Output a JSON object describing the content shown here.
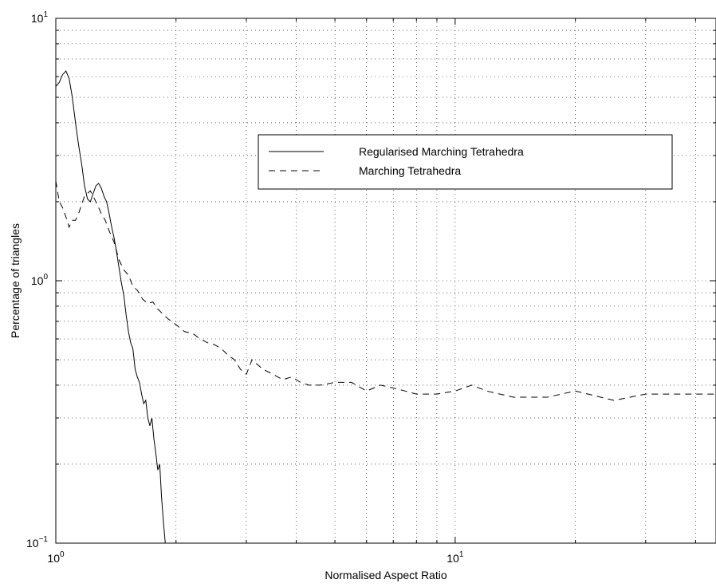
{
  "chart_data": {
    "type": "line",
    "title": "",
    "xlabel": "Normalised Aspect Ratio",
    "ylabel": "Percentage of triangles",
    "xscale": "log",
    "yscale": "log",
    "xlim": [
      1,
      45
    ],
    "ylim": [
      0.1,
      10
    ],
    "grid": true,
    "legend_position": "upper-right",
    "x_ticks": [
      {
        "value": 1,
        "base": "10",
        "exp": "0"
      },
      {
        "value": 10,
        "base": "10",
        "exp": "1"
      }
    ],
    "y_ticks": [
      {
        "value": 0.1,
        "base": "10",
        "exp": "−1"
      },
      {
        "value": 1,
        "base": "10",
        "exp": "0"
      },
      {
        "value": 10,
        "base": "10",
        "exp": "1"
      }
    ],
    "series": [
      {
        "name": "Regularised Marching Tetrahedra",
        "style": "solid",
        "color": "#000000",
        "points": [
          [
            1.0,
            5.5
          ],
          [
            1.02,
            5.7
          ],
          [
            1.04,
            6.1
          ],
          [
            1.06,
            6.3
          ],
          [
            1.08,
            5.9
          ],
          [
            1.1,
            5.0
          ],
          [
            1.12,
            4.0
          ],
          [
            1.14,
            3.3
          ],
          [
            1.16,
            2.8
          ],
          [
            1.18,
            2.3
          ],
          [
            1.2,
            2.05
          ],
          [
            1.22,
            2.0
          ],
          [
            1.24,
            2.15
          ],
          [
            1.26,
            2.3
          ],
          [
            1.28,
            2.35
          ],
          [
            1.3,
            2.25
          ],
          [
            1.32,
            2.1
          ],
          [
            1.34,
            2.0
          ],
          [
            1.36,
            1.8
          ],
          [
            1.38,
            1.6
          ],
          [
            1.4,
            1.45
          ],
          [
            1.42,
            1.28
          ],
          [
            1.44,
            1.12
          ],
          [
            1.46,
            0.98
          ],
          [
            1.48,
            0.88
          ],
          [
            1.5,
            0.74
          ],
          [
            1.52,
            0.64
          ],
          [
            1.54,
            0.58
          ],
          [
            1.56,
            0.55
          ],
          [
            1.58,
            0.46
          ],
          [
            1.6,
            0.43
          ],
          [
            1.62,
            0.41
          ],
          [
            1.64,
            0.37
          ],
          [
            1.66,
            0.34
          ],
          [
            1.68,
            0.35
          ],
          [
            1.7,
            0.3
          ],
          [
            1.72,
            0.28
          ],
          [
            1.74,
            0.3
          ],
          [
            1.76,
            0.25
          ],
          [
            1.78,
            0.22
          ],
          [
            1.8,
            0.19
          ],
          [
            1.82,
            0.2
          ],
          [
            1.84,
            0.15
          ],
          [
            1.86,
            0.12
          ],
          [
            1.88,
            0.1
          ]
        ]
      },
      {
        "name": "Marching Tetrahedra",
        "style": "dashed",
        "color": "#000000",
        "points": [
          [
            1.0,
            2.4
          ],
          [
            1.02,
            2.0
          ],
          [
            1.04,
            1.9
          ],
          [
            1.06,
            1.75
          ],
          [
            1.08,
            1.6
          ],
          [
            1.1,
            1.7
          ],
          [
            1.12,
            1.7
          ],
          [
            1.14,
            1.8
          ],
          [
            1.16,
            1.95
          ],
          [
            1.18,
            2.1
          ],
          [
            1.2,
            2.15
          ],
          [
            1.22,
            2.2
          ],
          [
            1.24,
            2.1
          ],
          [
            1.26,
            2.0
          ],
          [
            1.28,
            1.9
          ],
          [
            1.3,
            1.8
          ],
          [
            1.33,
            1.7
          ],
          [
            1.36,
            1.55
          ],
          [
            1.4,
            1.4
          ],
          [
            1.44,
            1.2
          ],
          [
            1.48,
            1.1
          ],
          [
            1.52,
            1.05
          ],
          [
            1.56,
            0.95
          ],
          [
            1.6,
            0.92
          ],
          [
            1.65,
            0.85
          ],
          [
            1.7,
            0.82
          ],
          [
            1.75,
            0.83
          ],
          [
            1.8,
            0.78
          ],
          [
            1.9,
            0.72
          ],
          [
            2.0,
            0.68
          ],
          [
            2.1,
            0.64
          ],
          [
            2.2,
            0.63
          ],
          [
            2.3,
            0.6
          ],
          [
            2.4,
            0.58
          ],
          [
            2.5,
            0.57
          ],
          [
            2.6,
            0.55
          ],
          [
            2.7,
            0.52
          ],
          [
            2.8,
            0.5
          ],
          [
            2.9,
            0.46
          ],
          [
            3.0,
            0.44
          ],
          [
            3.1,
            0.5
          ],
          [
            3.3,
            0.46
          ],
          [
            3.5,
            0.44
          ],
          [
            3.7,
            0.42
          ],
          [
            3.9,
            0.43
          ],
          [
            4.1,
            0.41
          ],
          [
            4.3,
            0.4
          ],
          [
            4.6,
            0.4
          ],
          [
            5.0,
            0.41
          ],
          [
            5.5,
            0.41
          ],
          [
            6.0,
            0.38
          ],
          [
            6.5,
            0.4
          ],
          [
            7.0,
            0.39
          ],
          [
            7.5,
            0.38
          ],
          [
            8.0,
            0.37
          ],
          [
            9.0,
            0.37
          ],
          [
            10.0,
            0.38
          ],
          [
            11.0,
            0.4
          ],
          [
            12.0,
            0.38
          ],
          [
            14.0,
            0.36
          ],
          [
            17.0,
            0.36
          ],
          [
            20.0,
            0.38
          ],
          [
            25.0,
            0.35
          ],
          [
            30.0,
            0.37
          ],
          [
            35.0,
            0.37
          ],
          [
            40.0,
            0.37
          ],
          [
            45.0,
            0.37
          ]
        ]
      }
    ]
  }
}
